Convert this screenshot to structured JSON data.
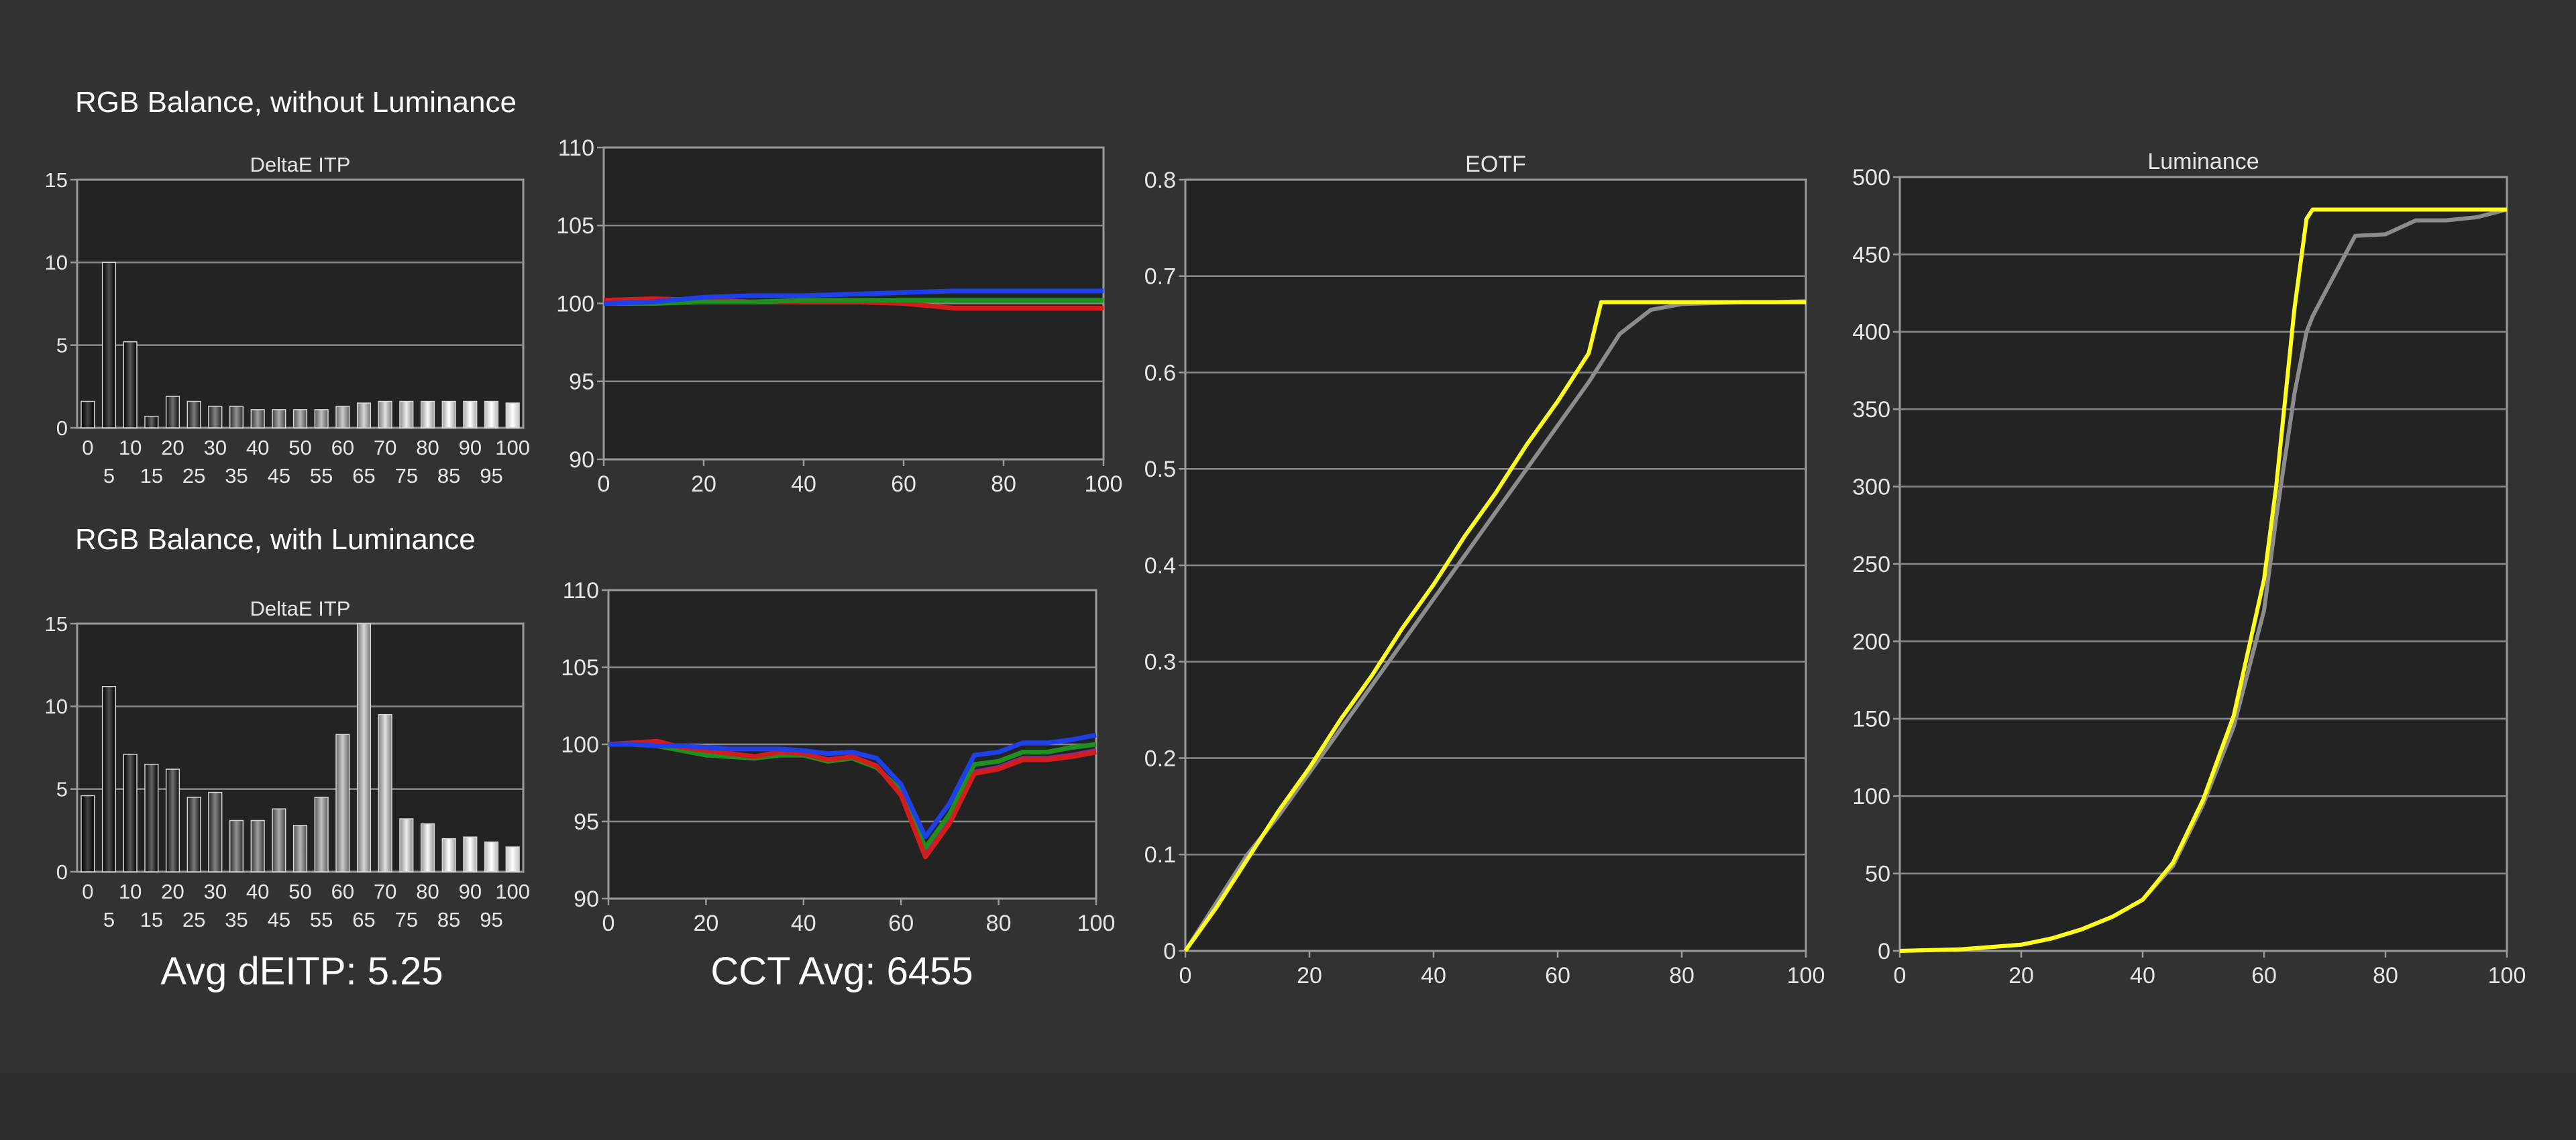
{
  "sections": {
    "without_luminance": "RGB Balance, without Luminance",
    "with_luminance": "RGB Balance, with Luminance"
  },
  "summary": {
    "avg_deitp": "Avg dEITP: 5.25",
    "cct_avg": "CCT Avg: 6455"
  },
  "colors": {
    "background": "#323232",
    "plot_bg": "#232323",
    "grid": "#8a8a8a",
    "red": "#d41c1c",
    "green": "#1f8f1f",
    "blue": "#1f3fe8",
    "purple": "#8a2a8a",
    "yellow": "#ffff1e",
    "gray": "#8c8c8c"
  },
  "chart_data": [
    {
      "id": "deitp_without",
      "type": "bar",
      "title": "DeltaE ITP",
      "categories": [
        "0",
        "5",
        "10",
        "15",
        "20",
        "25",
        "30",
        "35",
        "40",
        "45",
        "50",
        "55",
        "60",
        "65",
        "70",
        "75",
        "80",
        "85",
        "90",
        "95",
        "100"
      ],
      "values": [
        1.6,
        10.0,
        5.2,
        0.7,
        1.9,
        1.6,
        1.3,
        1.3,
        1.1,
        1.1,
        1.1,
        1.1,
        1.3,
        1.5,
        1.6,
        1.6,
        1.6,
        1.6,
        1.6,
        1.6,
        1.5
      ],
      "ylim": [
        0,
        15
      ],
      "yticks": [
        "0",
        "5",
        "10",
        "15"
      ],
      "grid": true
    },
    {
      "id": "rgb_without",
      "type": "line",
      "title": "",
      "x": [
        0,
        10,
        20,
        30,
        40,
        50,
        60,
        70,
        80,
        90,
        100
      ],
      "series": [
        {
          "color": "red",
          "values": [
            100.2,
            100.3,
            100.2,
            100.1,
            100.1,
            100.1,
            100.0,
            99.7,
            99.7,
            99.7,
            99.7
          ]
        },
        {
          "color": "green",
          "values": [
            100.0,
            100.0,
            100.1,
            100.1,
            100.2,
            100.2,
            100.2,
            100.2,
            100.2,
            100.2,
            100.2
          ]
        },
        {
          "color": "blue",
          "values": [
            100.0,
            100.1,
            100.4,
            100.5,
            100.5,
            100.6,
            100.7,
            100.8,
            100.8,
            100.8,
            100.8
          ]
        }
      ],
      "xlim": [
        0,
        100
      ],
      "ylim": [
        90,
        110
      ],
      "xticks": [
        "0",
        "20",
        "40",
        "60",
        "80",
        "100"
      ],
      "yticks": [
        "90",
        "95",
        "100",
        "105",
        "110"
      ],
      "grid": true
    },
    {
      "id": "deitp_with",
      "type": "bar",
      "title": "DeltaE ITP",
      "categories": [
        "0",
        "5",
        "10",
        "15",
        "20",
        "25",
        "30",
        "35",
        "40",
        "45",
        "50",
        "55",
        "60",
        "65",
        "70",
        "75",
        "80",
        "85",
        "90",
        "95",
        "100"
      ],
      "values": [
        4.6,
        11.2,
        7.1,
        6.5,
        6.2,
        4.5,
        4.8,
        3.1,
        3.1,
        3.8,
        2.8,
        4.5,
        8.3,
        15.0,
        9.5,
        3.2,
        2.9,
        2.0,
        2.1,
        1.8,
        1.5
      ],
      "ylim": [
        0,
        15
      ],
      "yticks": [
        "0",
        "5",
        "10",
        "15"
      ],
      "grid": true
    },
    {
      "id": "rgb_with",
      "type": "line",
      "title": "",
      "x": [
        0,
        5,
        10,
        15,
        20,
        25,
        30,
        35,
        40,
        45,
        50,
        55,
        60,
        65,
        70,
        75,
        80,
        85,
        90,
        95,
        100
      ],
      "series": [
        {
          "color": "purple",
          "values": [
            100.0,
            100.1,
            100.2,
            99.8,
            99.6,
            99.4,
            99.2,
            99.5,
            99.4,
            99.0,
            99.2,
            98.6,
            96.8,
            92.8,
            95.0,
            98.2,
            98.5,
            99.1,
            99.1,
            99.3,
            99.6
          ]
        },
        {
          "color": "green",
          "values": [
            100.0,
            100.0,
            99.9,
            99.6,
            99.3,
            99.2,
            99.1,
            99.3,
            99.3,
            98.9,
            99.1,
            98.5,
            97.0,
            93.3,
            95.5,
            98.7,
            98.9,
            99.5,
            99.5,
            99.8,
            100.0
          ]
        },
        {
          "color": "red",
          "values": [
            100.0,
            100.1,
            100.2,
            99.8,
            99.6,
            99.4,
            99.2,
            99.5,
            99.4,
            99.0,
            99.2,
            98.6,
            96.7,
            92.7,
            94.9,
            98.1,
            98.4,
            99.0,
            99.0,
            99.2,
            99.5
          ]
        },
        {
          "color": "blue",
          "values": [
            100.0,
            100.0,
            99.9,
            99.9,
            99.8,
            99.7,
            99.7,
            99.7,
            99.6,
            99.4,
            99.5,
            99.1,
            97.4,
            94.0,
            96.2,
            99.3,
            99.5,
            100.1,
            100.1,
            100.3,
            100.6
          ]
        }
      ],
      "xlim": [
        0,
        100
      ],
      "ylim": [
        90,
        110
      ],
      "xticks": [
        "0",
        "20",
        "40",
        "60",
        "80",
        "100"
      ],
      "yticks": [
        "90",
        "95",
        "100",
        "105",
        "110"
      ],
      "grid": true
    },
    {
      "id": "eotf",
      "type": "line",
      "title": "EOTF",
      "x": [
        0,
        5,
        10,
        15,
        20,
        25,
        30,
        35,
        40,
        45,
        50,
        55,
        60,
        65,
        67,
        70,
        75,
        80,
        85,
        90,
        95,
        100
      ],
      "series": [
        {
          "color": "gray",
          "values": [
            0.0,
            0.05,
            0.1,
            0.14,
            0.185,
            0.23,
            0.275,
            0.32,
            0.365,
            0.41,
            0.455,
            0.5,
            0.545,
            0.59,
            0.61,
            0.64,
            0.665,
            0.671,
            0.672,
            0.673,
            0.673,
            0.674
          ]
        },
        {
          "color": "yellow",
          "values": [
            0.0,
            0.045,
            0.095,
            0.145,
            0.19,
            0.24,
            0.285,
            0.335,
            0.38,
            0.43,
            0.475,
            0.525,
            0.57,
            0.62,
            0.673,
            0.673,
            0.673,
            0.673,
            0.673,
            0.673,
            0.673,
            0.673
          ]
        }
      ],
      "xlim": [
        0,
        100
      ],
      "ylim": [
        0,
        0.8
      ],
      "xticks": [
        "0",
        "20",
        "40",
        "60",
        "80",
        "100"
      ],
      "yticks": [
        "0",
        "0.1",
        "0.2",
        "0.3",
        "0.4",
        "0.5",
        "0.6",
        "0.7",
        "0.8"
      ],
      "grid": true
    },
    {
      "id": "luminance",
      "type": "line",
      "title": "Luminance",
      "x": [
        0,
        10,
        20,
        25,
        30,
        35,
        40,
        45,
        50,
        55,
        60,
        62,
        65,
        67,
        68,
        70,
        75,
        80,
        85,
        90,
        95,
        100
      ],
      "series": [
        {
          "color": "gray",
          "values": [
            0,
            1,
            4,
            8,
            14,
            22,
            33,
            55,
            95,
            145,
            220,
            280,
            360,
            400,
            410,
            425,
            462,
            463,
            472,
            472,
            474,
            479
          ]
        },
        {
          "color": "yellow",
          "values": [
            0,
            1,
            4,
            8,
            14,
            22,
            33,
            57,
            98,
            152,
            240,
            300,
            415,
            473,
            479,
            479,
            479,
            479,
            479,
            479,
            479,
            479
          ]
        }
      ],
      "xlim": [
        0,
        100
      ],
      "ylim": [
        0,
        500
      ],
      "xticks": [
        "0",
        "20",
        "40",
        "60",
        "80",
        "100"
      ],
      "yticks": [
        "0",
        "50",
        "100",
        "150",
        "200",
        "250",
        "300",
        "350",
        "400",
        "450",
        "500"
      ],
      "grid": true
    }
  ]
}
